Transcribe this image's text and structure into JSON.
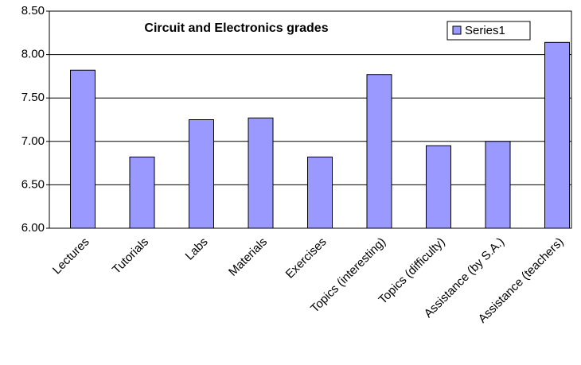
{
  "chart_data": {
    "type": "bar",
    "title": "Circuit and Electronics grades",
    "categories": [
      "Lectures",
      "Tutorials",
      "Labs",
      "Materials",
      "Exercises",
      "Topics (interesting)",
      "Topics (difficulty)",
      "Assistance (by S.A.)",
      "Assistance (teachers)"
    ],
    "series": [
      {
        "name": "Series1",
        "color": "#9999ff",
        "values": [
          7.82,
          6.82,
          7.25,
          7.27,
          6.82,
          7.77,
          6.95,
          7.0,
          8.14
        ]
      }
    ],
    "ylim": [
      6,
      8.5
    ],
    "yticks": [
      {
        "value": 6,
        "label": "6.00"
      },
      {
        "value": 6.5,
        "label": "6.50"
      },
      {
        "value": 7,
        "label": "7.00"
      },
      {
        "value": 7.5,
        "label": "7.50"
      },
      {
        "value": 8,
        "label": "8.00"
      },
      {
        "value": 8.5,
        "label": "8.50"
      }
    ],
    "grid": true,
    "legend": "top-right"
  }
}
